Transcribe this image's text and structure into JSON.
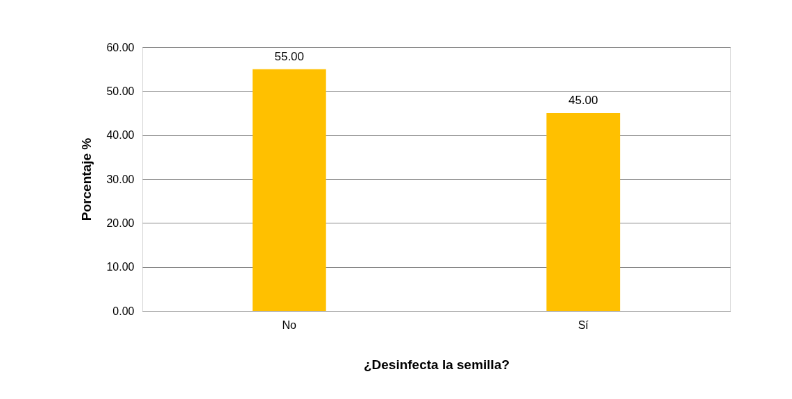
{
  "chart_data": {
    "type": "bar",
    "xlabel": "¿Desinfecta la semilla?",
    "ylabel": "Porcentaje %",
    "categories": [
      "No",
      "Sí"
    ],
    "values": [
      55,
      45
    ],
    "color": "#ffc000",
    "value_labels": [
      "55.00",
      "45.00"
    ],
    "ylim": [
      0,
      60
    ],
    "yticks": [
      {
        "value": 0,
        "label": "0.00"
      },
      {
        "value": 10,
        "label": "10.00"
      },
      {
        "value": 20,
        "label": "20.00"
      },
      {
        "value": 30,
        "label": "30.00"
      },
      {
        "value": 40,
        "label": "40.00"
      },
      {
        "value": 50,
        "label": "50.00"
      },
      {
        "value": 60,
        "label": "60.00"
      }
    ],
    "grid": "y"
  }
}
